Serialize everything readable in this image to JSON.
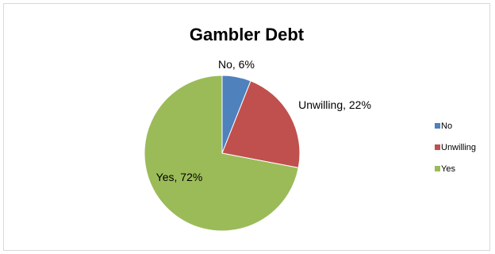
{
  "chart_data": {
    "type": "pie",
    "title": "Gambler Debt",
    "categories": [
      "No",
      "Unwilling",
      "Yes"
    ],
    "values": [
      6,
      22,
      72
    ],
    "unit": "%",
    "colors": [
      "#4f81bd",
      "#c0504d",
      "#9bbb59"
    ],
    "data_labels": [
      "No, 6%",
      "Unwilling, 22%",
      "Yes, 72%"
    ],
    "legend": {
      "position": "right",
      "entries": [
        "No",
        "Unwilling",
        "Yes"
      ]
    }
  }
}
